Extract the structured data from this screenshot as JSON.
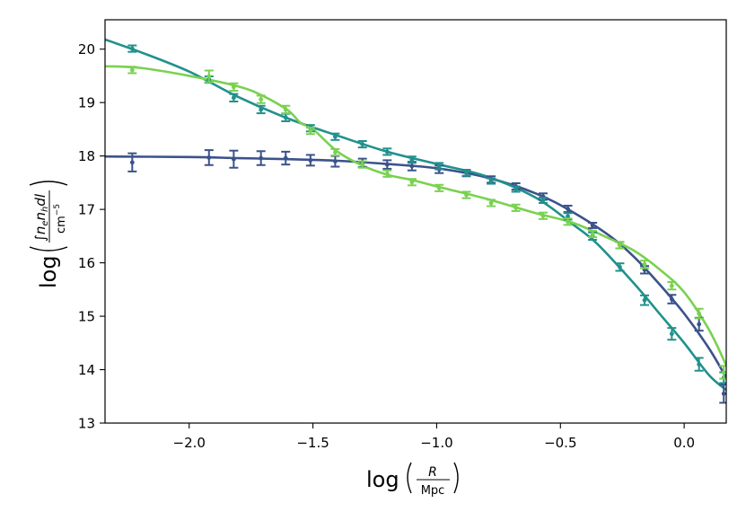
{
  "chart_data": {
    "type": "line",
    "xlabel_main": "log",
    "xlabel_num": "R",
    "xlabel_den": "Mpc",
    "ylabel_main": "log",
    "ylabel_num": "∫n",
    "ylabel_den": "cm",
    "xlim": [
      -2.34,
      0.17
    ],
    "ylim": [
      13.0,
      20.55
    ],
    "xticks": [
      -2.0,
      -1.5,
      -1.0,
      -0.5,
      0.0
    ],
    "xtick_labels": [
      "−2.0",
      "−1.5",
      "−1.0",
      "−0.5",
      "0.0"
    ],
    "yticks": [
      13,
      14,
      15,
      16,
      17,
      18,
      19,
      20
    ],
    "ytick_labels": [
      "13",
      "14",
      "15",
      "16",
      "17",
      "18",
      "19",
      "20"
    ],
    "grid": false,
    "series": [
      {
        "color": "#3b528b",
        "curve": [
          [
            -2.34,
            17.99
          ],
          [
            -2.0,
            17.98
          ],
          [
            -1.8,
            17.96
          ],
          [
            -1.6,
            17.94
          ],
          [
            -1.4,
            17.91
          ],
          [
            -1.2,
            17.85
          ],
          [
            -1.0,
            17.77
          ],
          [
            -0.8,
            17.6
          ],
          [
            -0.6,
            17.3
          ],
          [
            -0.45,
            16.95
          ],
          [
            -0.3,
            16.5
          ],
          [
            -0.2,
            16.1
          ],
          [
            -0.1,
            15.6
          ],
          [
            0.0,
            15.05
          ],
          [
            0.1,
            14.4
          ],
          [
            0.17,
            13.85
          ]
        ],
        "points": [
          {
            "x": -2.23,
            "y": 17.88,
            "err": 0.17
          },
          {
            "x": -1.92,
            "y": 17.97,
            "err": 0.14
          },
          {
            "x": -1.82,
            "y": 17.94,
            "err": 0.16
          },
          {
            "x": -1.71,
            "y": 17.96,
            "err": 0.13
          },
          {
            "x": -1.61,
            "y": 17.96,
            "err": 0.12
          },
          {
            "x": -1.51,
            "y": 17.92,
            "err": 0.1
          },
          {
            "x": -1.41,
            "y": 17.9,
            "err": 0.1
          },
          {
            "x": -1.3,
            "y": 17.87,
            "err": 0.08
          },
          {
            "x": -1.2,
            "y": 17.84,
            "err": 0.08
          },
          {
            "x": -1.1,
            "y": 17.81,
            "err": 0.08
          },
          {
            "x": -0.99,
            "y": 17.75,
            "err": 0.07
          },
          {
            "x": -0.88,
            "y": 17.68,
            "err": 0.06
          },
          {
            "x": -0.78,
            "y": 17.56,
            "err": 0.06
          },
          {
            "x": -0.68,
            "y": 17.43,
            "err": 0.06
          },
          {
            "x": -0.57,
            "y": 17.24,
            "err": 0.06
          },
          {
            "x": -0.47,
            "y": 17.01,
            "err": 0.06
          },
          {
            "x": -0.37,
            "y": 16.7,
            "err": 0.05
          },
          {
            "x": -0.26,
            "y": 16.33,
            "err": 0.06
          },
          {
            "x": -0.16,
            "y": 15.87,
            "err": 0.07
          },
          {
            "x": -0.05,
            "y": 15.32,
            "err": 0.08
          },
          {
            "x": 0.06,
            "y": 14.85,
            "err": 0.12
          },
          {
            "x": 0.16,
            "y": 13.55,
            "err": 0.17
          }
        ]
      },
      {
        "color": "#21918c",
        "curve": [
          [
            -2.34,
            20.18
          ],
          [
            -2.2,
            19.95
          ],
          [
            -2.0,
            19.58
          ],
          [
            -1.8,
            19.1
          ],
          [
            -1.6,
            18.7
          ],
          [
            -1.4,
            18.38
          ],
          [
            -1.2,
            18.08
          ],
          [
            -1.0,
            17.85
          ],
          [
            -0.8,
            17.62
          ],
          [
            -0.6,
            17.22
          ],
          [
            -0.45,
            16.72
          ],
          [
            -0.35,
            16.35
          ],
          [
            -0.2,
            15.6
          ],
          [
            -0.1,
            15.05
          ],
          [
            0.0,
            14.5
          ],
          [
            0.1,
            13.9
          ],
          [
            0.17,
            13.62
          ]
        ],
        "points": [
          {
            "x": -2.23,
            "y": 20.01,
            "err": 0.06
          },
          {
            "x": -1.92,
            "y": 19.43,
            "err": 0.06
          },
          {
            "x": -1.82,
            "y": 19.09,
            "err": 0.07
          },
          {
            "x": -1.71,
            "y": 18.87,
            "err": 0.07
          },
          {
            "x": -1.61,
            "y": 18.72,
            "err": 0.07
          },
          {
            "x": -1.51,
            "y": 18.52,
            "err": 0.06
          },
          {
            "x": -1.41,
            "y": 18.36,
            "err": 0.06
          },
          {
            "x": -1.3,
            "y": 18.22,
            "err": 0.06
          },
          {
            "x": -1.2,
            "y": 18.08,
            "err": 0.06
          },
          {
            "x": -1.1,
            "y": 17.93,
            "err": 0.06
          },
          {
            "x": -0.99,
            "y": 17.81,
            "err": 0.06
          },
          {
            "x": -0.88,
            "y": 17.68,
            "err": 0.05
          },
          {
            "x": -0.78,
            "y": 17.53,
            "err": 0.05
          },
          {
            "x": -0.68,
            "y": 17.38,
            "err": 0.05
          },
          {
            "x": -0.57,
            "y": 17.17,
            "err": 0.05
          },
          {
            "x": -0.47,
            "y": 16.87,
            "err": 0.06
          },
          {
            "x": -0.37,
            "y": 16.5,
            "err": 0.07
          },
          {
            "x": -0.26,
            "y": 15.92,
            "err": 0.07
          },
          {
            "x": -0.16,
            "y": 15.3,
            "err": 0.09
          },
          {
            "x": -0.05,
            "y": 14.67,
            "err": 0.11
          },
          {
            "x": 0.06,
            "y": 14.1,
            "err": 0.12
          },
          {
            "x": 0.16,
            "y": 13.85,
            "err": 0.1
          }
        ]
      },
      {
        "color": "#7ad151",
        "curve": [
          [
            -2.34,
            19.68
          ],
          [
            -2.2,
            19.65
          ],
          [
            -2.0,
            19.5
          ],
          [
            -1.8,
            19.3
          ],
          [
            -1.7,
            19.12
          ],
          [
            -1.6,
            18.85
          ],
          [
            -1.55,
            18.62
          ],
          [
            -1.5,
            18.5
          ],
          [
            -1.4,
            18.08
          ],
          [
            -1.3,
            17.82
          ],
          [
            -1.2,
            17.65
          ],
          [
            -1.1,
            17.55
          ],
          [
            -1.0,
            17.43
          ],
          [
            -0.8,
            17.2
          ],
          [
            -0.6,
            16.93
          ],
          [
            -0.45,
            16.75
          ],
          [
            -0.3,
            16.45
          ],
          [
            -0.2,
            16.22
          ],
          [
            -0.1,
            15.88
          ],
          [
            0.0,
            15.45
          ],
          [
            0.1,
            14.75
          ],
          [
            0.17,
            14.08
          ]
        ],
        "points": [
          {
            "x": -2.23,
            "y": 19.61,
            "err": 0.06
          },
          {
            "x": -1.92,
            "y": 19.49,
            "err": 0.11
          },
          {
            "x": -1.82,
            "y": 19.29,
            "err": 0.07
          },
          {
            "x": -1.71,
            "y": 19.06,
            "err": 0.07
          },
          {
            "x": -1.61,
            "y": 18.87,
            "err": 0.07
          },
          {
            "x": -1.51,
            "y": 18.47,
            "err": 0.06
          },
          {
            "x": -1.41,
            "y": 18.07,
            "err": 0.06
          },
          {
            "x": -1.3,
            "y": 17.84,
            "err": 0.06
          },
          {
            "x": -1.2,
            "y": 17.67,
            "err": 0.06
          },
          {
            "x": -1.1,
            "y": 17.51,
            "err": 0.06
          },
          {
            "x": -0.99,
            "y": 17.4,
            "err": 0.06
          },
          {
            "x": -0.88,
            "y": 17.27,
            "err": 0.06
          },
          {
            "x": -0.78,
            "y": 17.12,
            "err": 0.06
          },
          {
            "x": -0.68,
            "y": 17.03,
            "err": 0.06
          },
          {
            "x": -0.57,
            "y": 16.88,
            "err": 0.06
          },
          {
            "x": -0.47,
            "y": 16.77,
            "err": 0.06
          },
          {
            "x": -0.37,
            "y": 16.54,
            "err": 0.06
          },
          {
            "x": -0.26,
            "y": 16.33,
            "err": 0.06
          },
          {
            "x": -0.16,
            "y": 15.97,
            "err": 0.07
          },
          {
            "x": -0.05,
            "y": 15.57,
            "err": 0.07
          },
          {
            "x": 0.06,
            "y": 15.05,
            "err": 0.09
          },
          {
            "x": 0.16,
            "y": 13.95,
            "err": 0.12
          }
        ]
      }
    ]
  }
}
